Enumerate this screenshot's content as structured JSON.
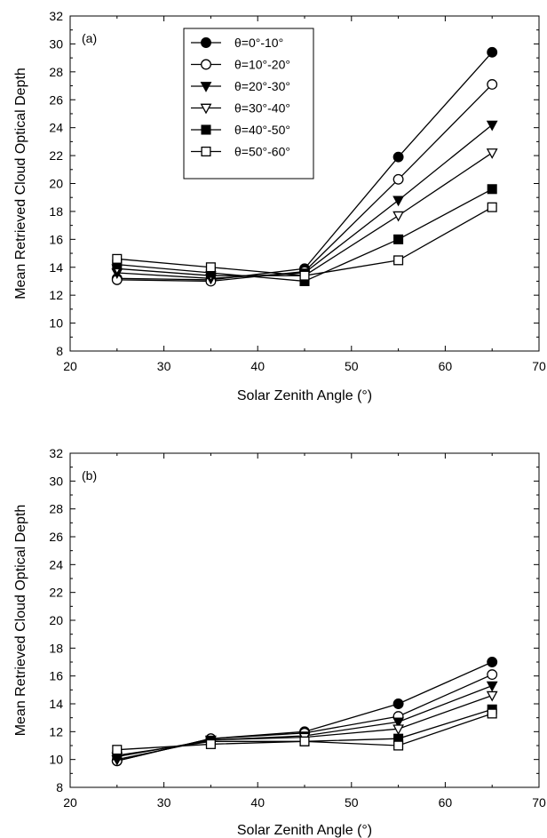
{
  "chart_data": [
    {
      "type": "line",
      "panel_label": "(a)",
      "xlabel": "Solar Zenith Angle (°)",
      "ylabel": "Mean Retrieved Cloud Optical Depth",
      "xlim": [
        20,
        70
      ],
      "ylim": [
        8,
        32
      ],
      "xticks": [
        20,
        30,
        40,
        50,
        60,
        70
      ],
      "yticks": [
        8,
        10,
        12,
        14,
        16,
        18,
        20,
        22,
        24,
        26,
        28,
        30,
        32
      ],
      "grid": false,
      "legend": "top-left",
      "x": [
        25,
        35,
        45,
        55,
        65
      ],
      "series": [
        {
          "name": "θ=0°-10°",
          "marker": "circle-filled",
          "values": [
            13.2,
            13.1,
            13.9,
            21.9,
            29.4
          ]
        },
        {
          "name": "θ=10°-20°",
          "marker": "circle-open",
          "values": [
            13.1,
            13.0,
            13.7,
            20.3,
            27.1
          ]
        },
        {
          "name": "θ=20°-30°",
          "marker": "triangle-filled",
          "values": [
            13.6,
            13.2,
            13.6,
            18.8,
            24.2
          ]
        },
        {
          "name": "θ=30°-40°",
          "marker": "triangle-open",
          "values": [
            13.9,
            13.4,
            13.4,
            17.7,
            22.2
          ]
        },
        {
          "name": "θ=40°-50°",
          "marker": "square-filled",
          "values": [
            14.2,
            13.6,
            13.0,
            16.0,
            19.6
          ]
        },
        {
          "name": "θ=50°-60°",
          "marker": "square-open",
          "values": [
            14.6,
            14.0,
            13.4,
            14.5,
            18.3
          ]
        }
      ]
    },
    {
      "type": "line",
      "panel_label": "(b)",
      "xlabel": "Solar Zenith Angle (°)",
      "ylabel": "Mean Retrieved Cloud Optical Depth",
      "xlim": [
        20,
        70
      ],
      "ylim": [
        8,
        32
      ],
      "xticks": [
        20,
        30,
        40,
        50,
        60,
        70
      ],
      "yticks": [
        8,
        10,
        12,
        14,
        16,
        18,
        20,
        22,
        24,
        26,
        28,
        30,
        32
      ],
      "grid": false,
      "legend": "",
      "x": [
        25,
        35,
        45,
        55,
        65
      ],
      "series": [
        {
          "marker": "circle-filled",
          "values": [
            9.9,
            11.5,
            12.0,
            14.0,
            17.0
          ]
        },
        {
          "marker": "circle-open",
          "values": [
            9.9,
            11.5,
            11.9,
            13.1,
            16.1
          ]
        },
        {
          "marker": "triangle-filled",
          "values": [
            10.0,
            11.4,
            11.7,
            12.7,
            15.3
          ]
        },
        {
          "marker": "triangle-open",
          "values": [
            10.2,
            11.4,
            11.6,
            12.2,
            14.6
          ]
        },
        {
          "marker": "square-filled",
          "values": [
            10.3,
            11.3,
            11.3,
            11.5,
            13.6
          ]
        },
        {
          "marker": "square-open",
          "values": [
            10.7,
            11.1,
            11.3,
            11.0,
            13.3
          ]
        }
      ]
    }
  ]
}
